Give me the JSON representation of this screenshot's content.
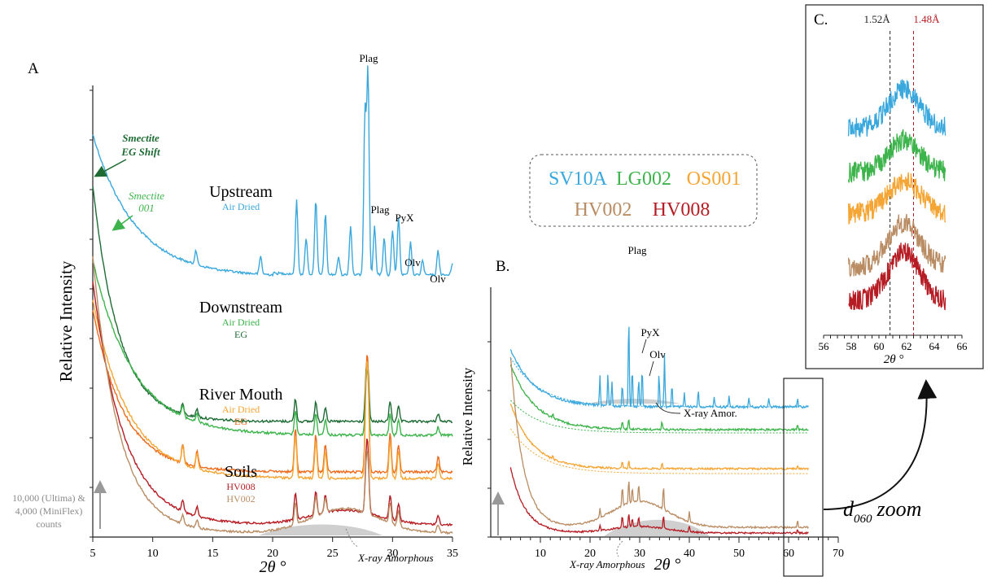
{
  "chart_data": [
    {
      "panel_label": "A",
      "type": "line",
      "xlabel": "2θ °",
      "ylabel": "Relative Intensity",
      "xlim": [
        5,
        35
      ],
      "xticks": [
        5,
        10,
        15,
        20,
        25,
        30,
        35
      ],
      "scale_note": [
        "10,000 (Ultima) &",
        "4,000 (MiniFlex)",
        "counts"
      ],
      "amorphous_label": "X-ray Amorphous",
      "annotations": {
        "smectite_shift": [
          "Smectite",
          "EG Shift"
        ],
        "smectite_001": [
          "Smectite",
          "001"
        ],
        "plag_top": "Plag",
        "plag_2": "Plag",
        "pyx": "PyX",
        "olv_1": "Olv",
        "olv_2": "Olv"
      },
      "groups": [
        {
          "name": "Upstream",
          "series": [
            {
              "name": "Air Dried",
              "color": "#3aa8dc"
            }
          ]
        },
        {
          "name": "Downstream",
          "series": [
            {
              "name": "Air Dried",
              "color": "#3cb44b"
            },
            {
              "name": "EG",
              "color": "#1e6b34"
            }
          ]
        },
        {
          "name": "River Mouth",
          "series": [
            {
              "name": "Air Dried",
              "color": "#f4a533"
            },
            {
              "name": "EG",
              "color": "#ec6a1c"
            }
          ]
        },
        {
          "name": "Soils",
          "series": [
            {
              "name": "HV008",
              "color": "#b51c23"
            },
            {
              "name": "HV002",
              "color": "#b98c63"
            }
          ]
        }
      ],
      "peaks_2theta": {
        "plag": 27.9,
        "pyx": 30.5,
        "olv": [
          31.5,
          33.8
        ]
      }
    },
    {
      "panel_label": "B.",
      "type": "line",
      "xlabel": "2θ °",
      "ylabel": "Relative Intensity",
      "xlim": [
        0,
        70
      ],
      "xticks": [
        10,
        20,
        30,
        40,
        50,
        60,
        70
      ],
      "amorphous_label": "X-ray Amorphous",
      "annotations": {
        "plag": "Plag",
        "pyx": "PyX",
        "olv": "Olv",
        "xray_amor": "X-ray Amor."
      },
      "series": [
        {
          "name": "SV10A",
          "color": "#3aa8dc"
        },
        {
          "name": "LG002",
          "color": "#3cb44b"
        },
        {
          "name": "OS001",
          "color": "#f4a533"
        },
        {
          "name": "HV002",
          "color": "#b98c63"
        },
        {
          "name": "HV008",
          "color": "#b51c23"
        }
      ],
      "zoom_label": "d",
      "zoom_sub": "060",
      "zoom_word": "zoom"
    },
    {
      "panel_label": "C.",
      "type": "line",
      "xlabel": "2θ °",
      "xlim": [
        56,
        66
      ],
      "xticks": [
        56,
        58,
        60,
        62,
        64,
        66
      ],
      "markers": [
        {
          "label": "1.52Å",
          "x": 60.8,
          "color": "#222222"
        },
        {
          "label": "1.48Å",
          "x": 62.5,
          "color": "#b51c23"
        }
      ]
    }
  ],
  "legend": {
    "row1": [
      {
        "name": "SV10A",
        "color": "#3aa8dc"
      },
      {
        "name": "LG002",
        "color": "#3cb44b"
      },
      {
        "name": "OS001",
        "color": "#f4a533"
      }
    ],
    "row2": [
      {
        "name": "HV002",
        "color": "#b98c63"
      },
      {
        "name": "HV008",
        "color": "#b51c23"
      }
    ]
  }
}
